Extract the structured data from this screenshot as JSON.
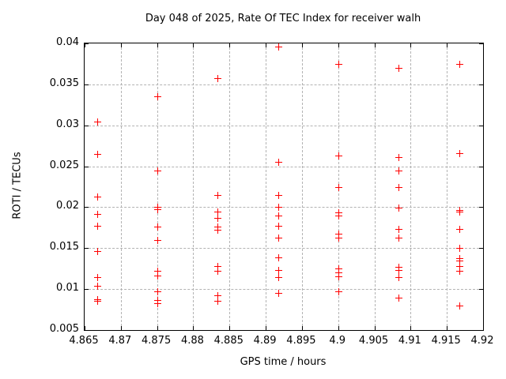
{
  "chart_data": {
    "type": "scatter",
    "title": "Day 048 of 2025, Rate Of TEC Index for receiver walh",
    "xlabel": "GPS time / hours",
    "ylabel": "ROTI / TECUs",
    "xlim": [
      4.865,
      4.92
    ],
    "ylim": [
      0.005,
      0.04
    ],
    "grid": true,
    "legend_position": "none",
    "marker_shape": "plus",
    "marker_color": "#ff0000",
    "xticks": [
      4.865,
      4.87,
      4.875,
      4.88,
      4.885,
      4.89,
      4.895,
      4.9,
      4.905,
      4.91,
      4.915,
      4.92
    ],
    "xtick_labels": [
      "4.865",
      "4.87",
      "4.875",
      "4.88",
      "4.885",
      "4.89",
      "4.895",
      "4.9",
      "4.905",
      "4.91",
      "4.915",
      "4.92"
    ],
    "yticks": [
      0.005,
      0.01,
      0.015,
      0.02,
      0.025,
      0.03,
      0.035,
      0.04
    ],
    "ytick_labels": [
      "0.005",
      "0.01",
      "0.015",
      "0.02",
      "0.025",
      "0.03",
      "0.035",
      "0.04"
    ],
    "series": [
      {
        "name": "ROTI",
        "points": [
          [
            4.8667,
            0.0305
          ],
          [
            4.8667,
            0.0265
          ],
          [
            4.8667,
            0.0213
          ],
          [
            4.8667,
            0.0192
          ],
          [
            4.8667,
            0.0177
          ],
          [
            4.8667,
            0.0146
          ],
          [
            4.8667,
            0.0115
          ],
          [
            4.8667,
            0.0104
          ],
          [
            4.8667,
            0.0088
          ],
          [
            4.8667,
            0.0086
          ],
          [
            4.875,
            0.0335
          ],
          [
            4.875,
            0.0245
          ],
          [
            4.875,
            0.02
          ],
          [
            4.875,
            0.0198
          ],
          [
            4.875,
            0.0176
          ],
          [
            4.875,
            0.016
          ],
          [
            4.875,
            0.0122
          ],
          [
            4.875,
            0.0117
          ],
          [
            4.875,
            0.0097
          ],
          [
            4.875,
            0.0087
          ],
          [
            4.875,
            0.0083
          ],
          [
            4.8833,
            0.0358
          ],
          [
            4.8833,
            0.0215
          ],
          [
            4.8833,
            0.0195
          ],
          [
            4.8833,
            0.0187
          ],
          [
            4.8833,
            0.0176
          ],
          [
            4.8833,
            0.0172
          ],
          [
            4.8833,
            0.0128
          ],
          [
            4.8833,
            0.0122
          ],
          [
            4.8833,
            0.0092
          ],
          [
            4.8833,
            0.0086
          ],
          [
            4.8917,
            0.0396
          ],
          [
            4.8917,
            0.0255
          ],
          [
            4.8917,
            0.0215
          ],
          [
            4.8917,
            0.02
          ],
          [
            4.8917,
            0.019
          ],
          [
            4.8917,
            0.0177
          ],
          [
            4.8917,
            0.0163
          ],
          [
            4.8917,
            0.0139
          ],
          [
            4.8917,
            0.0123
          ],
          [
            4.8917,
            0.0115
          ],
          [
            4.8917,
            0.0095
          ],
          [
            4.9,
            0.0375
          ],
          [
            4.9,
            0.0263
          ],
          [
            4.9,
            0.0225
          ],
          [
            4.9,
            0.0194
          ],
          [
            4.9,
            0.019
          ],
          [
            4.9,
            0.0168
          ],
          [
            4.9,
            0.0163
          ],
          [
            4.9,
            0.0125
          ],
          [
            4.9,
            0.012
          ],
          [
            4.9,
            0.0116
          ],
          [
            4.9,
            0.0097
          ],
          [
            4.9083,
            0.037
          ],
          [
            4.9083,
            0.0261
          ],
          [
            4.9083,
            0.0245
          ],
          [
            4.9083,
            0.0225
          ],
          [
            4.9083,
            0.0199
          ],
          [
            4.9083,
            0.0173
          ],
          [
            4.9083,
            0.0163
          ],
          [
            4.9083,
            0.0127
          ],
          [
            4.9083,
            0.0123
          ],
          [
            4.9083,
            0.0115
          ],
          [
            4.9083,
            0.009
          ],
          [
            4.9167,
            0.0375
          ],
          [
            4.9167,
            0.0266
          ],
          [
            4.9167,
            0.0197
          ],
          [
            4.9167,
            0.0195
          ],
          [
            4.9167,
            0.0173
          ],
          [
            4.9167,
            0.015
          ],
          [
            4.9167,
            0.0138
          ],
          [
            4.9167,
            0.0135
          ],
          [
            4.9167,
            0.0128
          ],
          [
            4.9167,
            0.0122
          ],
          [
            4.9167,
            0.008
          ]
        ]
      }
    ]
  }
}
